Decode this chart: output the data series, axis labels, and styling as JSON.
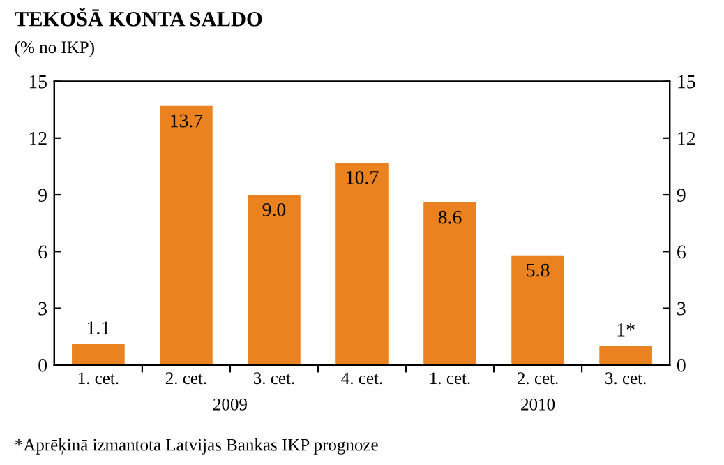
{
  "chart_data": {
    "type": "bar",
    "title": "TEKOŠĀ KONTA SALDO",
    "subtitle": "(% no IKP)",
    "categories": [
      "1. cet.",
      "2. cet.",
      "3. cet.",
      "4. cet.",
      "1. cet.",
      "2. cet.",
      "3. cet."
    ],
    "series": [
      {
        "color": "#ea8220",
        "values": [
          1.1,
          13.7,
          9.0,
          10.7,
          8.6,
          5.8,
          1
        ],
        "value_labels": [
          "1.1",
          "13.7",
          "9.0",
          "10.7",
          "8.6",
          "5.8",
          "1*"
        ]
      }
    ],
    "ylim": [
      0,
      15
    ],
    "yticks": [
      0,
      3,
      6,
      9,
      12,
      15
    ],
    "y2lim": [
      0,
      15
    ],
    "y2ticks": [
      0,
      3,
      6,
      9,
      12,
      15
    ],
    "annotations": [
      "2009",
      "2010",
      "*Aprēķinā izmantota Latvijas Bankas IKP prognoze"
    ],
    "grid": false,
    "legend": false
  }
}
